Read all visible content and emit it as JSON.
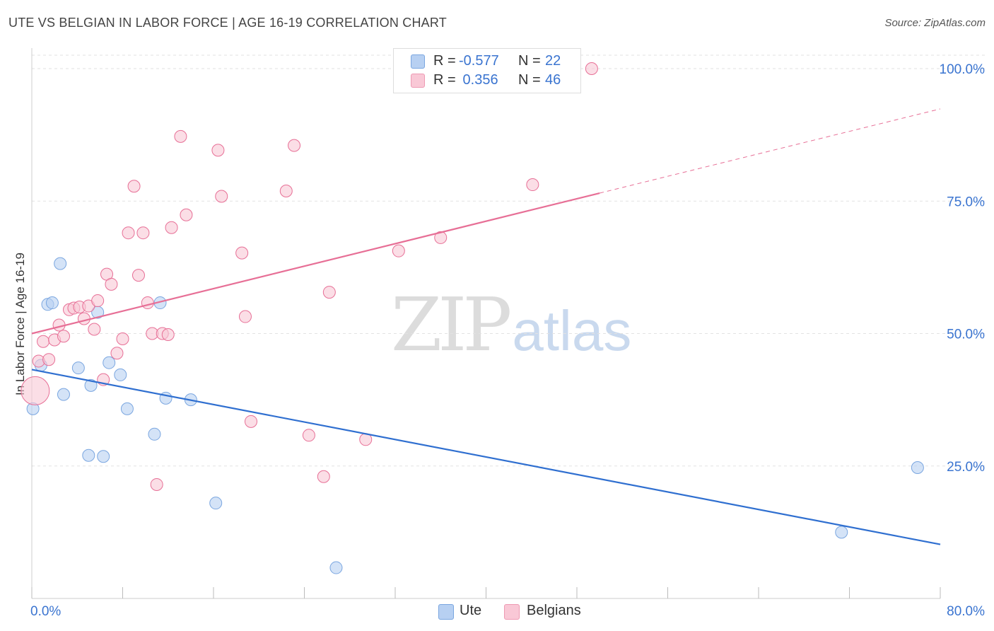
{
  "title": "UTE VS BELGIAN IN LABOR FORCE | AGE 16-19 CORRELATION CHART",
  "source": "Source: ZipAtlas.com",
  "watermark": {
    "zip": "ZIP",
    "atlas": "atlas"
  },
  "legend": {
    "rows": [
      {
        "r_label": "R =",
        "r_value": "-0.577",
        "n_label": "N =",
        "n_value": "22",
        "color": "#b7d0f2",
        "border": "#7aa6e0"
      },
      {
        "r_label": "R =",
        "r_value": " 0.356",
        "n_label": "N =",
        "n_value": "46",
        "color": "#f9c8d6",
        "border": "#ee9ab3"
      }
    ],
    "bottom": [
      {
        "label": "Ute",
        "color": "#b7d0f2",
        "border": "#7aa6e0"
      },
      {
        "label": "Belgians",
        "color": "#f9c8d6",
        "border": "#ee9ab3"
      }
    ]
  },
  "chart_data": {
    "type": "scatter",
    "title": "UTE VS BELGIAN IN LABOR FORCE | AGE 16-19 CORRELATION CHART",
    "xlabel": "",
    "ylabel": "In Labor Force | Age 16-19",
    "xlim": [
      0,
      80
    ],
    "ylim": [
      0,
      105
    ],
    "x_tick_labels": [
      "0.0%",
      "80.0%"
    ],
    "y_ticks": [
      25,
      50,
      75,
      100
    ],
    "y_tick_labels": [
      "25.0%",
      "50.0%",
      "75.0%",
      "100.0%"
    ],
    "grid": true,
    "series": [
      {
        "name": "Ute",
        "color": "#7aa6e0",
        "fill": "#b7d0f2",
        "points": [
          [
            0.1,
            35.8
          ],
          [
            0.8,
            44.0
          ],
          [
            1.4,
            55.5
          ],
          [
            1.8,
            55.8
          ],
          [
            2.5,
            63.2
          ],
          [
            2.8,
            38.5
          ],
          [
            4.1,
            43.5
          ],
          [
            5.0,
            27.0
          ],
          [
            5.2,
            40.2
          ],
          [
            5.8,
            54.0
          ],
          [
            6.3,
            26.8
          ],
          [
            6.8,
            44.5
          ],
          [
            7.8,
            42.2
          ],
          [
            8.4,
            35.8
          ],
          [
            10.8,
            31.0
          ],
          [
            11.3,
            55.8
          ],
          [
            11.8,
            37.8
          ],
          [
            14.0,
            37.5
          ],
          [
            16.2,
            18.0
          ],
          [
            26.8,
            5.8
          ],
          [
            71.3,
            12.5
          ],
          [
            78.0,
            24.7
          ]
        ],
        "trend": {
          "x": [
            0,
            80
          ],
          "y": [
            43.2,
            10.2
          ],
          "dashed_from": null
        }
      },
      {
        "name": "Belgians",
        "color": "#e76f96",
        "fill": "#f9c8d6",
        "points": [
          [
            0.3,
            39.2
          ],
          [
            0.6,
            44.8
          ],
          [
            1.0,
            48.5
          ],
          [
            1.5,
            45.1
          ],
          [
            2.0,
            48.8
          ],
          [
            2.4,
            51.6
          ],
          [
            2.8,
            49.5
          ],
          [
            3.3,
            54.5
          ],
          [
            3.7,
            54.8
          ],
          [
            4.2,
            55.0
          ],
          [
            4.6,
            52.8
          ],
          [
            5.0,
            55.2
          ],
          [
            5.5,
            50.8
          ],
          [
            5.8,
            56.2
          ],
          [
            6.3,
            41.3
          ],
          [
            6.6,
            61.2
          ],
          [
            7.0,
            59.3
          ],
          [
            7.5,
            46.3
          ],
          [
            8.0,
            49.0
          ],
          [
            8.5,
            69.0
          ],
          [
            9.0,
            77.8
          ],
          [
            9.4,
            61.0
          ],
          [
            9.8,
            69.0
          ],
          [
            10.2,
            55.8
          ],
          [
            10.6,
            50.0
          ],
          [
            11.0,
            21.5
          ],
          [
            11.5,
            50.0
          ],
          [
            12.0,
            49.8
          ],
          [
            12.3,
            70.0
          ],
          [
            13.1,
            87.2
          ],
          [
            13.6,
            72.4
          ],
          [
            16.4,
            84.6
          ],
          [
            16.7,
            75.9
          ],
          [
            18.5,
            65.2
          ],
          [
            18.8,
            53.2
          ],
          [
            19.3,
            33.4
          ],
          [
            22.4,
            76.9
          ],
          [
            23.1,
            85.5
          ],
          [
            24.4,
            30.8
          ],
          [
            25.7,
            23.0
          ],
          [
            26.2,
            57.8
          ],
          [
            29.4,
            30.0
          ],
          [
            32.3,
            65.6
          ],
          [
            36.0,
            68.1
          ],
          [
            44.1,
            78.1
          ],
          [
            49.3,
            100.0
          ]
        ],
        "trend": {
          "x": [
            0,
            80
          ],
          "y": [
            50.0,
            92.4
          ],
          "dashed_from": 50
        }
      }
    ]
  }
}
